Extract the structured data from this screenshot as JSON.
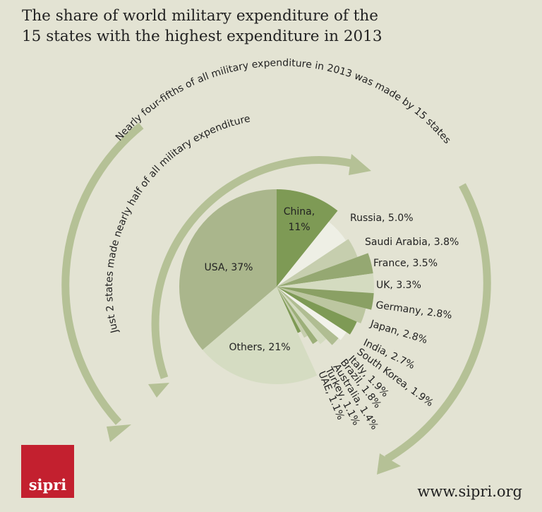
{
  "title": {
    "line1": "The share of world military expenditure of the",
    "line2": "15 states with the highest expenditure in 2013"
  },
  "annotations": {
    "outer_arc": "Nearly four-fifths of all military expenditure in 2013 was made by 15 states",
    "inner_arc": "Just 2 states made nearly half of all military expenditure"
  },
  "logo": {
    "text": "sipri"
  },
  "footer": {
    "url": "www.sipri.org"
  },
  "colors": {
    "background": "#e3e3d3",
    "usa": "#aab68c",
    "china": "#7e9a55",
    "others": "#d5dcc2",
    "arrow": "#b5c196",
    "logo": "#c3202f"
  },
  "chart_data": {
    "type": "pie",
    "title": "The share of world military expenditure of the 15 states with the highest expenditure in 2013",
    "unit": "%",
    "slices": [
      {
        "name": "China",
        "value": 11,
        "label": "China,",
        "label2": "11%",
        "color": "#7e9a55"
      },
      {
        "name": "Russia",
        "value": 5.0,
        "label": "Russia, 5.0%",
        "color": "#eeefe5"
      },
      {
        "name": "Saudi Arabia",
        "value": 3.8,
        "label": "Saudi Arabia, 3.8%",
        "color": "#c6ceae"
      },
      {
        "name": "France",
        "value": 3.5,
        "label": "France, 3.5%",
        "color": "#95a872"
      },
      {
        "name": "UK",
        "value": 3.3,
        "label": "UK, 3.3%",
        "color": "#d4dbc0"
      },
      {
        "name": "Germany",
        "value": 2.8,
        "label": "Germany, 2.8%",
        "color": "#8aa064"
      },
      {
        "name": "Japan",
        "value": 2.8,
        "label": "Japan, 2.8%",
        "color": "#bcc6a0"
      },
      {
        "name": "India",
        "value": 2.7,
        "label": "India, 2.7%",
        "color": "#7e9a55"
      },
      {
        "name": "South Korea",
        "value": 1.9,
        "label": "South Korea, 1.9%",
        "color": "#f2f2ea"
      },
      {
        "name": "Italy",
        "value": 1.9,
        "label": "Italy, 1.9%",
        "color": "#b0bd92"
      },
      {
        "name": "Brazil",
        "value": 1.8,
        "label": "Brazil, 1.8%",
        "color": "#d4dbc0"
      },
      {
        "name": "Australia",
        "value": 1.4,
        "label": "Australia, 1.4%",
        "color": "#9caf79"
      },
      {
        "name": "Turkey",
        "value": 1.1,
        "label": "Turkey, 1.1%",
        "color": "#c6ceae"
      },
      {
        "name": "UAE",
        "value": 1.1,
        "label": "UAE, 1.1%",
        "color": "#7e9a55"
      },
      {
        "name": "Others",
        "value": 21,
        "label": "Others, 21%",
        "color": "#d5dcc2"
      },
      {
        "name": "USA",
        "value": 37,
        "label": "USA, 37%",
        "color": "#aab68c"
      }
    ]
  }
}
